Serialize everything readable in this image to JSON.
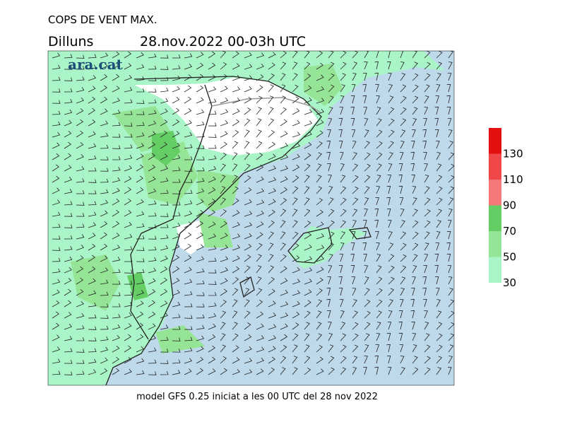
{
  "header": {
    "title": "COPS DE VENT MAX.",
    "day": "Dilluns",
    "period": "28.nov.2022 00-03h UTC"
  },
  "logo": "ara.cat",
  "footer": "model GFS 0.25 iniciat a les 00 UTC del 28 nov 2022",
  "legend": {
    "levels": [
      30,
      50,
      70,
      90,
      110,
      130
    ],
    "colors": [
      "#aaf5c8",
      "#96e496",
      "#64cd64",
      "#f47878",
      "#f04848",
      "#e41010"
    ]
  }
}
